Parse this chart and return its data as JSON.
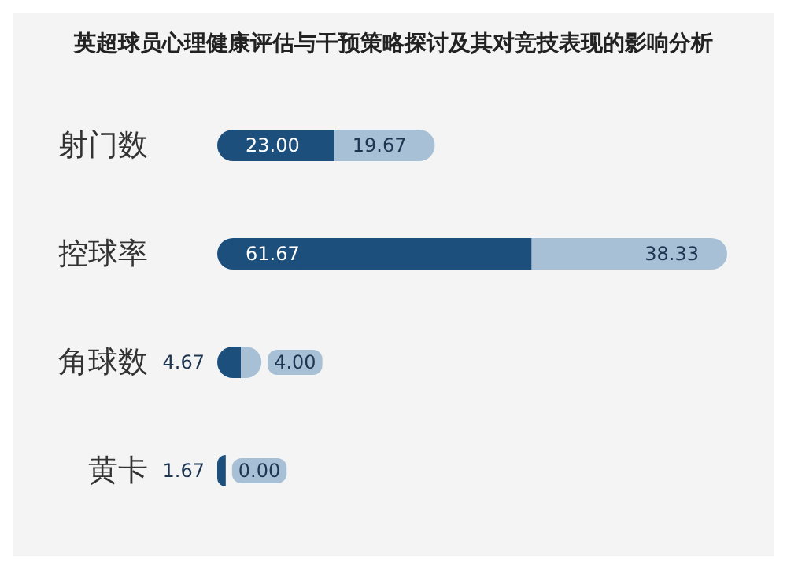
{
  "chart_data": {
    "type": "bar",
    "title": "英超球员心理健康评估与干预策略探讨及其对竞技表现的影响分析",
    "orientation": "horizontal",
    "stacked": true,
    "categories": [
      "射门数",
      "控球率",
      "角球数",
      "黄卡"
    ],
    "series": [
      {
        "color": "#1d4f7c",
        "values": [
          23,
          61.67,
          4.67,
          1.67
        ],
        "value_labels": [
          "23.00",
          "61.67",
          "4.67",
          "1.67"
        ]
      },
      {
        "color": "#a7c0d6",
        "values": [
          19.67,
          38.33,
          4,
          0
        ],
        "value_labels": [
          "19.67",
          "38.33",
          "4.00",
          "0.00"
        ]
      }
    ]
  }
}
